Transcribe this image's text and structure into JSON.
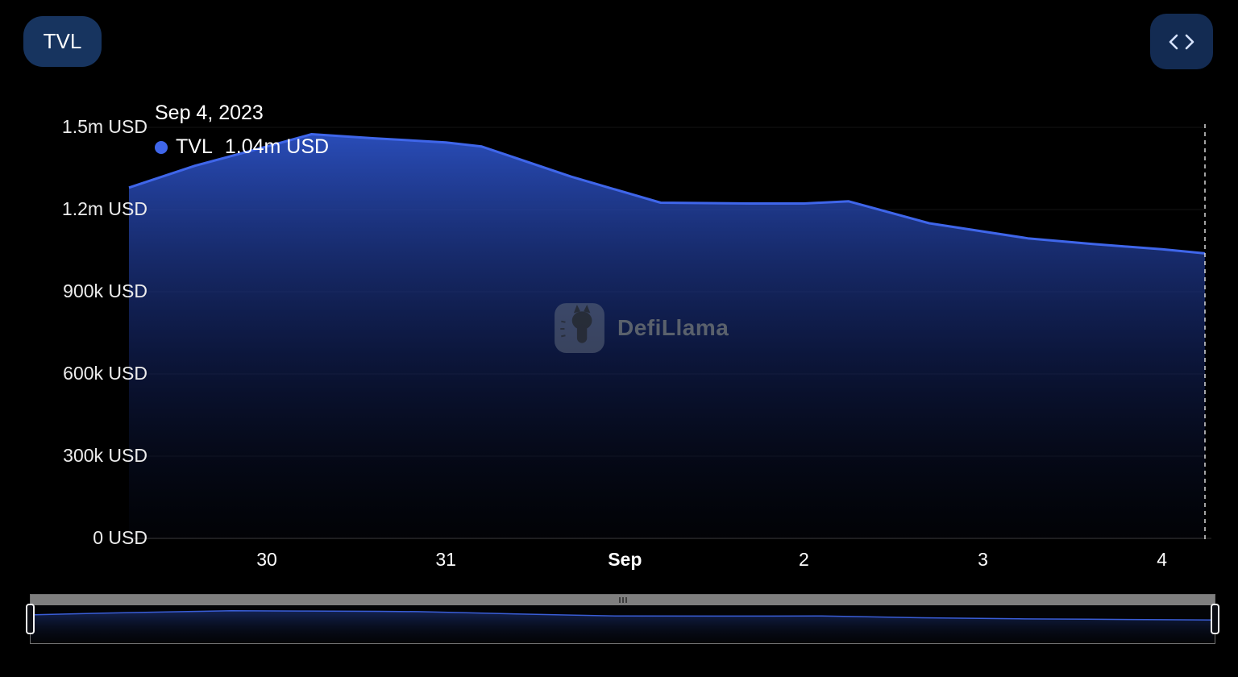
{
  "colors": {
    "background": "#000000",
    "line_blue": "#3f66ea",
    "area_top": "#2e55cd",
    "button_bg": "#17345f",
    "watermark_gray": "#5a616c"
  },
  "header": {
    "tvl_button": "TVL"
  },
  "tooltip": {
    "date": "Sep 4, 2023",
    "series": "TVL",
    "value": "1.04m USD"
  },
  "watermark": {
    "label": "DefiLlama"
  },
  "chart_data": {
    "type": "area",
    "title": "TVL",
    "ylabel": "USD",
    "xlim": [
      29.23,
      35.24
    ],
    "ylim": [
      0,
      1500000
    ],
    "x_unit": "date (29 = Aug 29 2023 ... 32 = Sep 1 ... 35 = Sep 4 2023)",
    "grid": true,
    "legend_position": "top-left-tooltip",
    "hover_line_x": 35.24,
    "series": [
      {
        "name": "TVL",
        "x": [
          29.23,
          29.6,
          30.0,
          30.25,
          30.6,
          31.0,
          31.2,
          31.7,
          32.2,
          32.7,
          33.0,
          33.25,
          33.7,
          34.25,
          34.6,
          35.0,
          35.24
        ],
        "values": [
          1280000,
          1360000,
          1430000,
          1475000,
          1460000,
          1445000,
          1430000,
          1320000,
          1225000,
          1222000,
          1222000,
          1230000,
          1150000,
          1095000,
          1075000,
          1055000,
          1040000
        ]
      }
    ],
    "xticks": [
      {
        "value": 30,
        "label": "30",
        "bold": false
      },
      {
        "value": 31,
        "label": "31",
        "bold": false
      },
      {
        "value": 32,
        "label": "Sep",
        "bold": true
      },
      {
        "value": 33,
        "label": "2",
        "bold": false
      },
      {
        "value": 34,
        "label": "3",
        "bold": false
      },
      {
        "value": 35,
        "label": "4",
        "bold": false
      }
    ],
    "yticks": [
      {
        "value": 0,
        "label": "0 USD"
      },
      {
        "value": 300000,
        "label": "300k USD"
      },
      {
        "value": 600000,
        "label": "600k USD"
      },
      {
        "value": 900000,
        "label": "900k USD"
      },
      {
        "value": 1200000,
        "label": "1.2m USD"
      },
      {
        "value": 1500000,
        "label": "1.5m USD"
      }
    ],
    "minimap": true
  }
}
